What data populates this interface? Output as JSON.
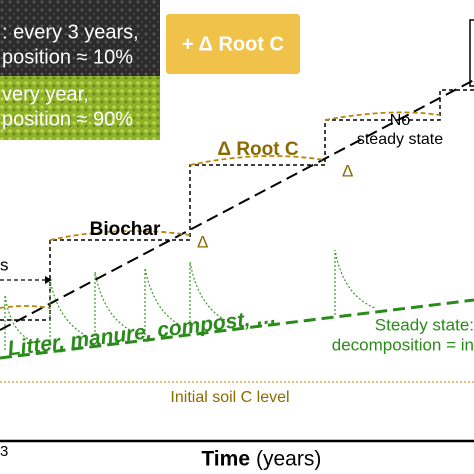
{
  "legend": {
    "biochar_line1": ": every 3 years,",
    "biochar_line2": "position ≈ 10%",
    "root": "+ Δ Root C",
    "litter_line1": "very year,",
    "litter_line2": "position ≈ 90%"
  },
  "labels": {
    "no_steady_1": "No",
    "no_steady_2": "steady state",
    "delta_root": "Δ Root C",
    "delta_marks": [
      "Δ",
      "Δ"
    ],
    "biochar": "Biochar",
    "arrow_label": "s",
    "steady_1": "Steady state:",
    "steady_2": "decomposition = in",
    "litter": "Litter, manure, compost, …",
    "initial": "Initial soil C level",
    "axis_left": "3",
    "axis_title": "Time",
    "axis_unit": "(years)"
  }
}
